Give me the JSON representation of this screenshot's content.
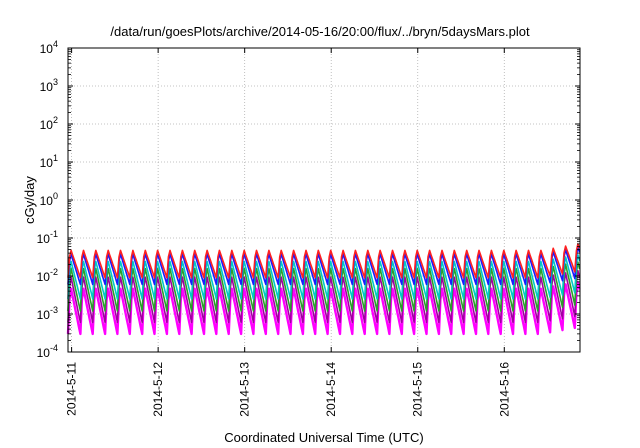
{
  "chart_data": {
    "type": "line",
    "title": "/data/run/goesPlots/archive/2014-05-16/20:00/flux/../bryn/5daysMars.plot",
    "xlabel": "Coordinated Universal Time (UTC)",
    "ylabel": "cGy/day",
    "yscale": "log",
    "ylim": [
      0.0001,
      10000
    ],
    "y_ticks": [
      {
        "base": "10",
        "exp": "-4"
      },
      {
        "base": "10",
        "exp": "-3"
      },
      {
        "base": "10",
        "exp": "-2"
      },
      {
        "base": "10",
        "exp": "-1"
      },
      {
        "base": "10",
        "exp": "0"
      },
      {
        "base": "10",
        "exp": "1"
      },
      {
        "base": "10",
        "exp": "2"
      },
      {
        "base": "10",
        "exp": "3"
      },
      {
        "base": "10",
        "exp": "4"
      }
    ],
    "x_ticks": [
      "2014-5-11",
      "2014-5-12",
      "2014-5-13",
      "2014-5-14",
      "2014-5-15",
      "2014-5-16"
    ],
    "xlim": [
      "2014-05-10T23:00",
      "2014-05-16T21:00"
    ],
    "grid": true,
    "oscillation": {
      "cycles_per_day": 7
    },
    "series": [
      {
        "color": "#ff00ff",
        "peak": 0.006,
        "trough": 0.0003
      },
      {
        "color": "#a000a0",
        "peak": 0.012,
        "trough": 0.0006
      },
      {
        "color": "#2aa02a",
        "peak": 0.02,
        "trough": 0.0012
      },
      {
        "color": "#00c8c8",
        "peak": 0.03,
        "trough": 0.0025
      },
      {
        "color": "#1a1aff",
        "peak": 0.045,
        "trough": 0.006
      },
      {
        "color": "#ff2020",
        "peak": 0.055,
        "trough": 0.009
      }
    ]
  }
}
